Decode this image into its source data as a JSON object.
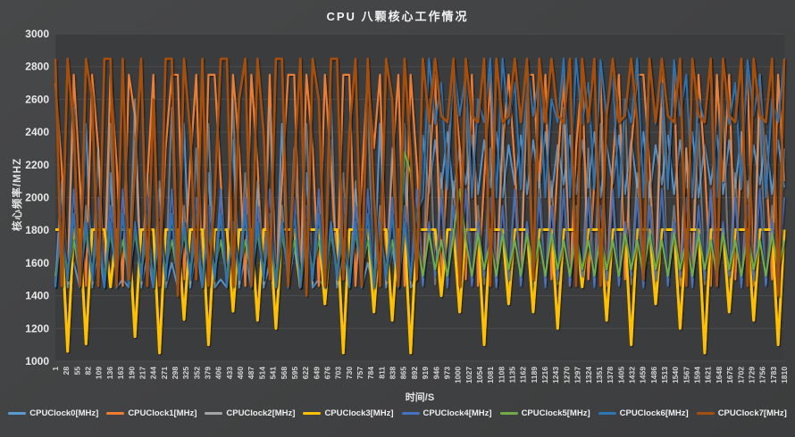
{
  "chart_data": {
    "type": "line",
    "title": "CPU  八颗核心工作情况",
    "ylabel": "核心频率/MHZ",
    "xlabel": "时间/S",
    "ylim": [
      1000,
      3000
    ],
    "y_ticks": [
      1000,
      1200,
      1400,
      1600,
      1800,
      2000,
      2200,
      2400,
      2600,
      2800,
      3000
    ],
    "x_range": [
      1,
      1810
    ],
    "x_ticks": [
      1,
      28,
      55,
      82,
      109,
      136,
      163,
      190,
      217,
      244,
      271,
      298,
      325,
      352,
      379,
      406,
      433,
      460,
      487,
      514,
      541,
      568,
      595,
      622,
      649,
      676,
      703,
      730,
      757,
      784,
      811,
      838,
      865,
      892,
      919,
      946,
      973,
      1000,
      1027,
      1054,
      1081,
      1108,
      1135,
      1162,
      1189,
      1216,
      1243,
      1270,
      1297,
      1324,
      1351,
      1378,
      1405,
      1432,
      1459,
      1486,
      1513,
      1540,
      1567,
      1594,
      1621,
      1648,
      1675,
      1702,
      1729,
      1756,
      1783,
      1810
    ],
    "grid": true,
    "legend_position": "bottom",
    "note": "Dense per-second traces; values below are evenly spaced samples (~every 15 s) read from the plot.",
    "colors": {
      "page_background": "#434445",
      "plot_background": "#3b3c3e",
      "gridline": "#4b4c4e",
      "title_text": "#f2f2f2",
      "tick_text": "#d6d6d6"
    },
    "series": [
      {
        "name": "CPUClock0[MHz]",
        "color": "#5B9BD5",
        "values": [
          1450,
          2050,
          1450,
          1600,
          1450,
          2450,
          1450,
          1700,
          1450,
          2150,
          1450,
          1500,
          1450,
          2350,
          1450,
          1650,
          1450,
          2050,
          1450,
          1600,
          1450,
          2450,
          1450,
          1700,
          1450,
          2150,
          1450,
          1500,
          1450,
          2350,
          1450,
          1650,
          1450,
          2050,
          1450,
          1600,
          1450,
          2450,
          1450,
          1700,
          1450,
          2150,
          1450,
          1500,
          1450,
          2350,
          1450,
          1650,
          1450,
          2050,
          1450,
          1600,
          1450,
          2450,
          1450,
          1700,
          1450,
          2150,
          1450,
          1500,
          2380,
          2020,
          2350,
          2060,
          2400,
          2000,
          2320,
          2080,
          2380,
          2020,
          2350,
          2060,
          2400,
          2000,
          2320,
          2080,
          2380,
          2020,
          2350,
          2060,
          2400,
          2000,
          2320,
          2080,
          2380,
          2020,
          2350,
          2060,
          2400,
          2000,
          2320,
          2080,
          2380,
          2020,
          2350,
          2060,
          2400,
          2000,
          2320,
          2080,
          2380,
          2020,
          2350,
          2060,
          2400,
          2000,
          2320,
          2080,
          2380,
          2020,
          2350,
          2060,
          2400,
          2000,
          2320,
          2080,
          2380,
          2020,
          2350,
          2060
        ]
      },
      {
        "name": "CPUClock1[MHz]",
        "color": "#ED7D31",
        "values": [
          2700,
          2200,
          1500,
          2750,
          2100,
          1460,
          2750,
          2300,
          1500,
          2750,
          2200,
          1460,
          2750,
          2500,
          1500,
          2100,
          2750,
          1460,
          2300,
          2750,
          2750,
          1500,
          2200,
          2750,
          1460,
          2750,
          2750,
          2100,
          1500,
          2750,
          2300,
          1460,
          2750,
          2200,
          1500,
          2750,
          1460,
          2100,
          2750,
          2750,
          1500,
          2750,
          2300,
          1460,
          2750,
          2200,
          1500,
          2750,
          2750,
          1460,
          2100,
          2750,
          2300,
          2750,
          1500,
          2200,
          2750,
          1460,
          2750,
          2200,
          1500,
          2100,
          2750,
          1460,
          2200,
          2750,
          2300,
          1500,
          2750,
          1460,
          2100,
          2750,
          1460,
          2300,
          2750,
          2200,
          1500,
          2750,
          2750,
          2100,
          2750,
          1500,
          2200,
          2750,
          1460,
          2300,
          2750,
          1500,
          2100,
          2750,
          1460,
          2200,
          2750,
          1500,
          2300,
          2750,
          2750,
          2200,
          1500,
          2750,
          2100,
          2750,
          1460,
          2300,
          1500,
          2750,
          2200,
          1460,
          2750,
          2100,
          2750,
          1500,
          2300,
          2750,
          1460,
          2750,
          2200,
          1500,
          2750,
          2100
        ]
      },
      {
        "name": "CPUClock2[MHz]",
        "color": "#A5A5A5",
        "values": [
          1470,
          2100,
          1470,
          2550,
          1470,
          1950,
          1470,
          2300,
          1470,
          2450,
          1470,
          2000,
          1470,
          2600,
          1470,
          2150,
          1470,
          2100,
          1470,
          2550,
          1470,
          1950,
          1470,
          2300,
          1470,
          2450,
          1470,
          2000,
          1470,
          2600,
          1470,
          2150,
          1470,
          2100,
          1470,
          2550,
          1470,
          1950,
          1470,
          2300,
          1470,
          2450,
          1470,
          2000,
          1470,
          2600,
          1470,
          2150,
          1470,
          2100,
          1470,
          2550,
          1470,
          1950,
          1470,
          2300,
          1470,
          2450,
          1470,
          2000,
          1470,
          2600,
          1470,
          2150,
          1470,
          2100,
          1470,
          2550,
          1470,
          1950,
          1470,
          2300,
          1470,
          2450,
          1470,
          2000,
          1470,
          2600,
          1470,
          2150,
          1470,
          2100,
          1470,
          2550,
          1470,
          1950,
          1470,
          2300,
          1470,
          2450,
          1470,
          2000,
          1470,
          2600,
          1470,
          2150,
          1470,
          2100,
          1470,
          2550,
          1470,
          1950,
          1470,
          2300,
          1470,
          2450,
          1470,
          2000,
          1470,
          2600,
          1470,
          2150,
          1470,
          2100,
          1470,
          2550,
          1470,
          1950,
          1470,
          2300
        ]
      },
      {
        "name": "CPUClock3[MHz]",
        "color": "#FFC000",
        "values": [
          1804,
          1804,
          1060,
          1804,
          1804,
          1105,
          1804,
          1804,
          1804,
          1454,
          1804,
          1804,
          1804,
          1150,
          1804,
          1804,
          1804,
          1050,
          1804,
          1804,
          1804,
          1255,
          1804,
          1804,
          1804,
          1100,
          1804,
          1804,
          1804,
          1305,
          1804,
          1804,
          1804,
          1250,
          1804,
          1804,
          1200,
          1804,
          1804,
          1804,
          1454,
          1804,
          1804,
          1804,
          1350,
          1804,
          1804,
          1050,
          1804,
          1804,
          1804,
          1804,
          1300,
          1804,
          1804,
          1250,
          1804,
          1804,
          1050,
          1804,
          1804,
          1804,
          1804,
          1400,
          1804,
          1804,
          1300,
          1804,
          1804,
          1804,
          1100,
          1804,
          1804,
          1804,
          1350,
          1804,
          1804,
          1804,
          1300,
          1804,
          1804,
          1804,
          1200,
          1804,
          1804,
          1804,
          1454,
          1804,
          1804,
          1804,
          1250,
          1804,
          1804,
          1804,
          1100,
          1804,
          1804,
          1804,
          1350,
          1804,
          1804,
          1804,
          1200,
          1804,
          1804,
          1804,
          1050,
          1804,
          1804,
          1804,
          1300,
          1804,
          1804,
          1804,
          1250,
          1804,
          1804,
          1804,
          1100,
          1804
        ]
      },
      {
        "name": "CPUClock4[MHz]",
        "color": "#4472C4",
        "values": [
          1450,
          1950,
          1500,
          2050,
          1460,
          1850,
          1520,
          2000,
          1450,
          1950,
          1500,
          2050,
          1460,
          1850,
          1520,
          2000,
          1450,
          1950,
          1500,
          2050,
          1460,
          1850,
          1520,
          2000,
          1450,
          1950,
          1500,
          2050,
          1460,
          1850,
          1520,
          2000,
          1450,
          1950,
          1500,
          2050,
          1460,
          1850,
          1520,
          2000,
          1450,
          1950,
          1500,
          2050,
          1460,
          1850,
          1520,
          2000,
          1450,
          1950,
          1500,
          2050,
          1460,
          1850,
          1520,
          2000,
          1450,
          1950,
          1500,
          2050,
          1460,
          1850,
          1520,
          2000,
          1450,
          1950,
          1500,
          2050,
          1460,
          1850,
          1520,
          2000,
          1450,
          1950,
          1500,
          2050,
          1460,
          1850,
          1520,
          2000,
          1450,
          1950,
          1500,
          2050,
          1460,
          1850,
          1520,
          2000,
          1450,
          1950,
          1500,
          2050,
          1460,
          1850,
          1520,
          2000,
          1450,
          1950,
          1500,
          2050,
          1460,
          1850,
          1520,
          2000,
          1450,
          1950,
          1500,
          2050,
          1460,
          1850,
          1520,
          2000,
          1450,
          1950,
          1500,
          2050,
          1460,
          1850,
          1520,
          2000
        ]
      },
      {
        "name": "CPUClock5[MHz]",
        "color": "#70AD47",
        "values": [
          1520,
          1780,
          1560,
          1740,
          1520,
          1780,
          1560,
          1740,
          1520,
          1780,
          1560,
          1740,
          1520,
          1780,
          1560,
          1740,
          1520,
          1780,
          1560,
          1740,
          1520,
          1780,
          1560,
          1740,
          1520,
          1780,
          1560,
          1740,
          1520,
          1780,
          1560,
          1740,
          1520,
          1780,
          1560,
          1740,
          1520,
          1780,
          1560,
          1740,
          1520,
          1780,
          1560,
          1740,
          1520,
          1780,
          1560,
          1740,
          1520,
          1780,
          1560,
          1740,
          1520,
          1780,
          1560,
          1740,
          1520,
          2280,
          2150,
          1740,
          1520,
          1780,
          1560,
          1740,
          1520,
          1780,
          2050,
          1740,
          1520,
          1780,
          1560,
          1740,
          1520,
          1780,
          1560,
          1740,
          1520,
          1780,
          1560,
          1740,
          1520,
          1780,
          1560,
          1740,
          1520,
          1780,
          1560,
          1740,
          1520,
          1780,
          1560,
          1740,
          1520,
          1780,
          1560,
          1740,
          1520,
          1780,
          1560,
          1740,
          1520,
          1780,
          1560,
          1740,
          1520,
          1780,
          1560,
          1740,
          1520,
          1780,
          1560,
          1740,
          1520,
          1780,
          1560,
          1740,
          1520,
          1780,
          1560,
          1740
        ]
      },
      {
        "name": "CPUClock6[MHz]",
        "color": "#2E75B6",
        "values": [
          1450,
          1850,
          1500,
          1900,
          1450,
          1850,
          1500,
          1900,
          1450,
          1850,
          1500,
          1900,
          1450,
          1850,
          1500,
          1900,
          1450,
          1850,
          1500,
          1900,
          1450,
          1850,
          1500,
          1900,
          1450,
          1850,
          1500,
          1900,
          1450,
          1850,
          1500,
          1900,
          1450,
          1850,
          1500,
          1900,
          1450,
          1850,
          1500,
          1900,
          1450,
          1850,
          1500,
          1900,
          1450,
          1850,
          1500,
          1900,
          1450,
          1850,
          1500,
          1900,
          1450,
          1850,
          1500,
          1900,
          1450,
          1850,
          1500,
          1900,
          2000,
          2850,
          2450,
          2700,
          2050,
          2840,
          2500,
          2750,
          2000,
          2600,
          2460,
          2850,
          2000,
          2850,
          2450,
          2700,
          2050,
          2840,
          2500,
          2750,
          2000,
          2600,
          2460,
          2850,
          2000,
          2850,
          2450,
          2700,
          2050,
          2840,
          2500,
          2750,
          2000,
          2600,
          2460,
          2850,
          2000,
          2850,
          2450,
          2700,
          2050,
          2840,
          2500,
          2750,
          2000,
          2600,
          2460,
          2850,
          2000,
          2850,
          2450,
          2700,
          2050,
          2840,
          2500,
          2750,
          2000,
          2600,
          2460,
          2850
        ]
      },
      {
        "name": "CPUClock7[MHz]",
        "color": "#A6500F",
        "values": [
          2848,
          1460,
          2848,
          2400,
          1460,
          2848,
          2600,
          1460,
          2848,
          2848,
          1460,
          2848,
          1500,
          2200,
          2848,
          1460,
          2600,
          1460,
          2848,
          2848,
          1400,
          2848,
          2400,
          1500,
          2848,
          1460,
          2000,
          2848,
          2848,
          1460,
          2600,
          2848,
          1460,
          2848,
          2400,
          1500,
          2848,
          2848,
          1460,
          2200,
          2848,
          1400,
          2848,
          2600,
          1460,
          2848,
          2848,
          1500,
          2400,
          2848,
          1460,
          2848,
          2000,
          1460,
          2848,
          2600,
          1460,
          2848,
          2280,
          1500,
          2848,
          2460,
          2848,
          2500,
          2460,
          2848,
          1460,
          2848,
          2500,
          2460,
          2848,
          1460,
          2848,
          2460,
          2500,
          2848,
          2460,
          2848,
          1500,
          2848,
          2460,
          2848,
          2500,
          2460,
          2848,
          1460,
          2848,
          2460,
          2848,
          1460,
          2500,
          2848,
          2460,
          2500,
          2848,
          2460,
          1500,
          2848,
          2460,
          2848,
          2500,
          2460,
          2848,
          1460,
          2848,
          2500,
          2460,
          2848,
          1460,
          2848,
          2500,
          2460,
          2848,
          1460,
          2848,
          2500,
          2460,
          2848,
          1400,
          2848
        ]
      }
    ]
  }
}
